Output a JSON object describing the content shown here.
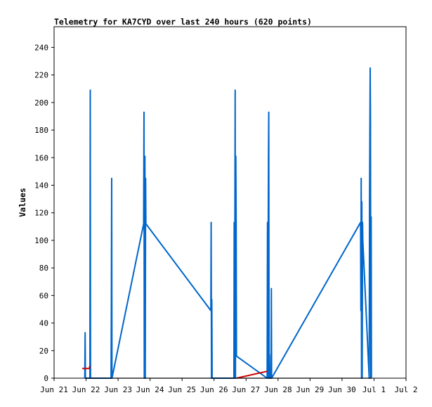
{
  "chart_data": {
    "type": "line",
    "title": "Telemetry for KA7CYD over last 240 hours (620 points)",
    "xlabel": "",
    "ylabel": "Values",
    "x_ticks": [
      "Jun 21",
      "Jun 22",
      "Jun 23",
      "Jun 24",
      "Jun 25",
      "Jun 26",
      "Jun 27",
      "Jun 28",
      "Jun 29",
      "Jun 30",
      "Jul 1",
      "Jul 2"
    ],
    "y_ticks": [
      0,
      20,
      40,
      60,
      80,
      100,
      120,
      140,
      160,
      180,
      200,
      220,
      240
    ],
    "xlim": [
      0,
      11
    ],
    "ylim": [
      0,
      255
    ],
    "grid": false,
    "legend": "none",
    "series": [
      {
        "color": "#0066cc",
        "points": [
          [
            0.96,
            0
          ],
          [
            0.97,
            33
          ],
          [
            0.98,
            0
          ],
          [
            1.12,
            0
          ],
          [
            1.13,
            209
          ],
          [
            1.14,
            0
          ],
          [
            1.78,
            0
          ],
          [
            1.79,
            49
          ],
          [
            1.8,
            145
          ],
          [
            1.81,
            0
          ],
          [
            2.8,
            112
          ],
          [
            2.81,
            193
          ],
          [
            2.82,
            0
          ],
          [
            2.84,
            161
          ],
          [
            2.85,
            0
          ],
          [
            2.86,
            145
          ],
          [
            2.87,
            112
          ],
          [
            4.9,
            49
          ],
          [
            4.91,
            113
          ],
          [
            4.92,
            0
          ],
          [
            4.93,
            57
          ],
          [
            4.94,
            0
          ],
          [
            5.62,
            0
          ],
          [
            5.63,
            113
          ],
          [
            5.64,
            0
          ],
          [
            5.66,
            209
          ],
          [
            5.67,
            0
          ],
          [
            5.68,
            161
          ],
          [
            5.69,
            113
          ],
          [
            5.7,
            16
          ],
          [
            6.66,
            0
          ],
          [
            6.67,
            113
          ],
          [
            6.68,
            0
          ],
          [
            6.7,
            161
          ],
          [
            6.71,
            193
          ],
          [
            6.72,
            0
          ],
          [
            6.73,
            17
          ],
          [
            6.74,
            0
          ],
          [
            6.78,
            0
          ],
          [
            6.79,
            65
          ],
          [
            6.8,
            0
          ],
          [
            9.58,
            113
          ],
          [
            9.59,
            49
          ],
          [
            9.6,
            145
          ],
          [
            9.61,
            0
          ],
          [
            9.62,
            128
          ],
          [
            9.63,
            0
          ],
          [
            9.64,
            113
          ],
          [
            9.65,
            100
          ],
          [
            9.85,
            0
          ],
          [
            9.86,
            129
          ],
          [
            9.88,
            225
          ],
          [
            9.89,
            188
          ],
          [
            9.9,
            0
          ],
          [
            9.91,
            117
          ],
          [
            9.92,
            0
          ]
        ]
      },
      {
        "color": "#cc0000",
        "points": [
          [
            0.88,
            7
          ],
          [
            1.1,
            7
          ],
          [
            1.12,
            9
          ]
        ]
      },
      {
        "color": "#cc0000",
        "points": [
          [
            5.7,
            0
          ],
          [
            6.66,
            5
          ]
        ]
      },
      {
        "color": "#000000",
        "points": [
          [
            0.96,
            0
          ],
          [
            9.92,
            0
          ]
        ]
      }
    ]
  }
}
